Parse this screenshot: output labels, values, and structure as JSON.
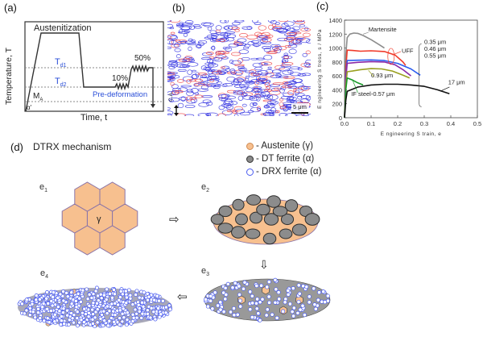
{
  "panels": {
    "a": {
      "label": "(a)",
      "title": "Austenitization",
      "ylabel": "Temperature, T",
      "xlabel": "Time, t",
      "td1": "T",
      "td1_sub": "d1",
      "td2": "T",
      "td2_sub": "d2",
      "ms": "M",
      "ms_sub": "A",
      "alpha_prime": "α'",
      "strain_10": "10%",
      "strain_50": "50%",
      "predeformation": "Pre-deformation",
      "label_color": "#2a4ed8"
    },
    "b": {
      "label": "(b)",
      "ca_label": "C.A.",
      "scale_bar": "5 μm",
      "colors": {
        "boundary_high": "#3030e0",
        "boundary_low": "#ee4444"
      }
    },
    "c": {
      "label": "(c)"
    },
    "d": {
      "label": "(d)",
      "title": "DTRX mechanism",
      "legend": [
        {
          "label": "- Austenite (γ)",
          "color": "#f7c08f",
          "stroke": "#d08a50",
          "icon": "austenite-hexagon"
        },
        {
          "label": "- DT ferrite (α)",
          "color": "#8a8a8a",
          "stroke": "#333333",
          "icon": "dt-ferrite-grain"
        },
        {
          "label": "- DRX ferrite (α)",
          "color": "#ffffff",
          "stroke": "#4a5cf0",
          "icon": "drx-ferrite-circle"
        }
      ],
      "stages": [
        {
          "id": "e1",
          "base": "e",
          "sub": "1"
        },
        {
          "id": "e2",
          "base": "e",
          "sub": "2"
        },
        {
          "id": "e3",
          "base": "e",
          "sub": "3"
        },
        {
          "id": "e4",
          "base": "e",
          "sub": "4"
        }
      ],
      "gamma_label": "γ",
      "arrows": {
        "e1_to_e2": "⇨",
        "e2_to_e3": "⇩",
        "e3_to_e4": "⇦"
      },
      "colors": {
        "austenite": "#f7c08f",
        "austenite_edge": "#8a74a8",
        "dt_ferrite": "#8c8c8c",
        "dt_edge": "#2e2e2e",
        "drx_edge": "#4a5cf0"
      }
    }
  },
  "chart_data": {
    "type": "line",
    "title": "",
    "xlabel": "E ngineering S train, e",
    "ylabel": "E ngineering S tress, s / MPa",
    "xlim": [
      0,
      0.5
    ],
    "ylim": [
      0,
      1400
    ],
    "xticks": [
      "0.0",
      "0.1",
      "0.2",
      "0.3",
      "0.4",
      "0.5"
    ],
    "yticks": [
      "0",
      "200",
      "400",
      "600",
      "800",
      "1000",
      "1200",
      "1400"
    ],
    "grid": false,
    "series": [
      {
        "name": "Martensite",
        "color": "#8c8c8c",
        "x": [
          0.0,
          0.005,
          0.01,
          0.02,
          0.035,
          0.05,
          0.07,
          0.1,
          0.13,
          0.15
        ],
        "y": [
          0,
          900,
          1150,
          1200,
          1215,
          1210,
          1180,
          1120,
          1050,
          1000
        ]
      },
      {
        "name": "0.35 μm",
        "color": "#f03a2a",
        "x": [
          0.0,
          0.005,
          0.01,
          0.03,
          0.06,
          0.1,
          0.15,
          0.19,
          0.22,
          0.23
        ],
        "y": [
          0,
          700,
          970,
          965,
          955,
          960,
          950,
          900,
          800,
          750
        ]
      },
      {
        "name": "0.46 μm",
        "color": "#2a5cf0",
        "x": [
          0.0,
          0.005,
          0.01,
          0.05,
          0.1,
          0.15,
          0.2,
          0.25,
          0.285
        ],
        "y": [
          0,
          600,
          820,
          825,
          830,
          820,
          780,
          700,
          610
        ]
      },
      {
        "name": "0.55 μm",
        "color": "#8a2aa8",
        "x": [
          0.0,
          0.005,
          0.01,
          0.05,
          0.1,
          0.15,
          0.19,
          0.22,
          0.25
        ],
        "y": [
          0,
          550,
          780,
          795,
          805,
          800,
          760,
          690,
          600
        ]
      },
      {
        "name": "0.93 μm",
        "color": "#9aa020",
        "x": [
          0.0,
          0.005,
          0.01,
          0.03,
          0.06,
          0.1,
          0.14,
          0.18,
          0.22,
          0.245
        ],
        "y": [
          0,
          450,
          660,
          670,
          690,
          705,
          700,
          670,
          610,
          570
        ]
      },
      {
        "name": "IF steel-0.57 μm",
        "color": "#1a9a2a",
        "x": [
          0.0,
          0.005,
          0.01,
          0.03,
          0.05,
          0.07
        ],
        "y": [
          0,
          400,
          570,
          540,
          500,
          470
        ]
      },
      {
        "name": "17 μm",
        "color": "#111111",
        "x": [
          0.0,
          0.005,
          0.01,
          0.05,
          0.1,
          0.15,
          0.2,
          0.25,
          0.3,
          0.35,
          0.395
        ],
        "y": [
          0,
          250,
          380,
          440,
          470,
          480,
          480,
          470,
          450,
          400,
          345
        ]
      }
    ],
    "annotations": [
      {
        "text": "Martensite",
        "x": 0.09,
        "y": 1240
      },
      {
        "text": "UFF",
        "x": 0.215,
        "y": 930
      },
      {
        "text": "0.35 μm",
        "x": 0.3,
        "y": 1060
      },
      {
        "text": "0.46 μm",
        "x": 0.3,
        "y": 960
      },
      {
        "text": "0.55 μm",
        "x": 0.3,
        "y": 860
      },
      {
        "text": "0.93 μm",
        "x": 0.1,
        "y": 580
      },
      {
        "text": "IF steel-0.57 μm",
        "x": 0.025,
        "y": 310
      },
      {
        "text": "17 μm",
        "x": 0.39,
        "y": 480
      }
    ]
  }
}
